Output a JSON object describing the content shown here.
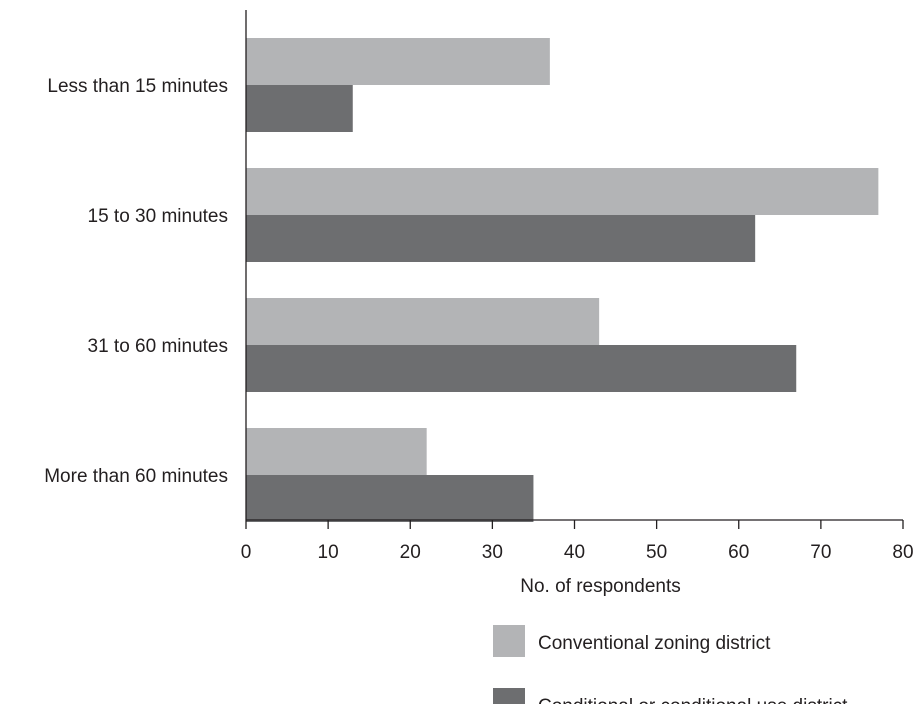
{
  "chart_data": {
    "type": "bar",
    "orientation": "horizontal",
    "title": "",
    "xlabel": "No. of respondents",
    "ylabel": "",
    "xlim": [
      0,
      80
    ],
    "xticks": [
      0,
      10,
      20,
      30,
      40,
      50,
      60,
      70,
      80
    ],
    "grid": false,
    "legend_position": "bottom-right",
    "categories": [
      "Less than 15 minutes",
      "15 to 30 minutes",
      "31 to 60 minutes",
      "More than 60 minutes"
    ],
    "series": [
      {
        "name": "Conventional zoning district",
        "color": "#b3b4b6",
        "values": [
          37,
          77,
          43,
          22
        ]
      },
      {
        "name": "Conditional or conditional use district",
        "color": "#6d6e70",
        "values": [
          13,
          62,
          67,
          35
        ]
      }
    ]
  }
}
